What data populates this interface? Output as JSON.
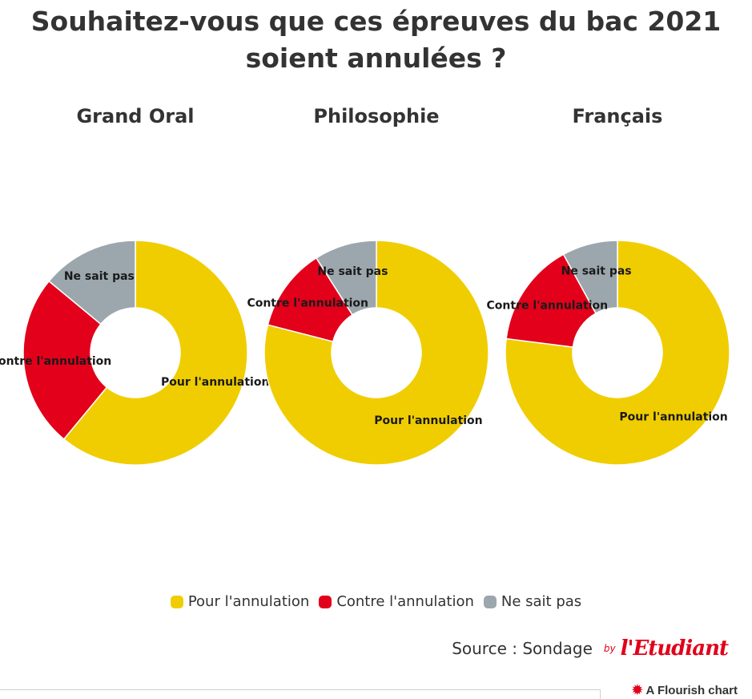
{
  "title": "Souhaitez-vous que ces épreuves du bac 2021 soient annulées ?",
  "colors": {
    "pour": "#f0cd00",
    "contre": "#e2001a",
    "nsp": "#9ca7ad"
  },
  "chart_data": [
    {
      "type": "pie",
      "title": "Grand Oral",
      "categories": [
        "Pour l'annulation",
        "Contre l'annulation",
        "Ne sait pas"
      ],
      "values": [
        61,
        25,
        14
      ]
    },
    {
      "type": "pie",
      "title": "Philosophie",
      "categories": [
        "Pour l'annulation",
        "Contre l'annulation",
        "Ne sait pas"
      ],
      "values": [
        79,
        12,
        9
      ]
    },
    {
      "type": "pie",
      "title": "Français",
      "categories": [
        "Pour l'annulation",
        "Contre l'annulation",
        "Ne sait pas"
      ],
      "values": [
        77,
        15,
        8
      ]
    }
  ],
  "legend": {
    "items": [
      {
        "label": "Pour l'annulation",
        "color": "#f0cd00"
      },
      {
        "label": "Contre l'annulation",
        "color": "#e2001a"
      },
      {
        "label": "Ne sait pas",
        "color": "#9ca7ad"
      }
    ]
  },
  "source": {
    "text": "Source : Sondage",
    "by": "by",
    "logo": "l'Etudiant"
  },
  "footer": {
    "credit": "A Flourish chart",
    "star_icon": "flourish-star-icon"
  }
}
